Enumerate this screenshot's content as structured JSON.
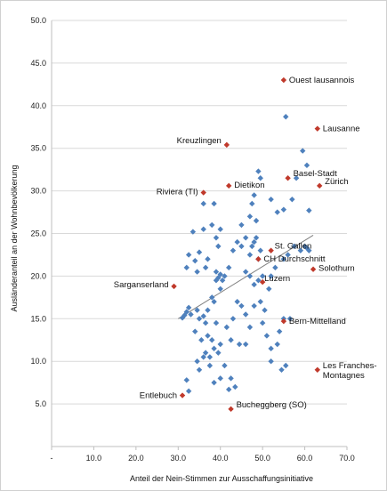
{
  "chart_data": {
    "type": "scatter",
    "title": "",
    "xlabel": "Anteil der Nein-Stimmen zur Ausschaffungsinitiative",
    "ylabel": "Ausländeranteil an der Wohnbevölkerung",
    "xlim": [
      0,
      70
    ],
    "ylim": [
      0,
      50
    ],
    "x_ticks": [
      "-",
      "10.0",
      "20.0",
      "30.0",
      "40.0",
      "50.0",
      "60.0",
      "70.0"
    ],
    "y_ticks": [
      "5.0",
      "10.0",
      "15.0",
      "20.0",
      "25.0",
      "30.0",
      "35.0",
      "40.0",
      "45.0",
      "50.0"
    ],
    "grid": "horizontal",
    "legend": "none",
    "colors": {
      "marker": "#4f81bd",
      "highlight": "#c0392b",
      "trendline": "#7f7f7f"
    },
    "trendline": {
      "x": [
        30.0,
        62.0
      ],
      "y": [
        15.0,
        24.8
      ]
    },
    "series": [
      {
        "points": [
          [
            31.0,
            15.1
          ],
          [
            31.5,
            15.4
          ],
          [
            32.0,
            15.8
          ],
          [
            32.5,
            16.3
          ],
          [
            33.0,
            15.5
          ],
          [
            32.0,
            21.0
          ],
          [
            32.5,
            22.5
          ],
          [
            33.5,
            25.2
          ],
          [
            34.0,
            21.8
          ],
          [
            34.5,
            20.5
          ],
          [
            35.0,
            22.8
          ],
          [
            36.0,
            25.5
          ],
          [
            36.5,
            21.0
          ],
          [
            37.0,
            22.0
          ],
          [
            36.0,
            28.5
          ],
          [
            38.5,
            28.5
          ],
          [
            38.0,
            26.0
          ],
          [
            39.0,
            24.5
          ],
          [
            39.5,
            23.5
          ],
          [
            40.0,
            25.5
          ],
          [
            38.0,
            17.5
          ],
          [
            38.5,
            17.0
          ],
          [
            39.0,
            19.5
          ],
          [
            39.0,
            20.5
          ],
          [
            39.5,
            19.8
          ],
          [
            40.0,
            20.2
          ],
          [
            40.5,
            19.5
          ],
          [
            40.0,
            18.5
          ],
          [
            41.0,
            20.0
          ],
          [
            42.0,
            21.0
          ],
          [
            34.5,
            16.0
          ],
          [
            35.0,
            15.0
          ],
          [
            36.0,
            15.3
          ],
          [
            37.0,
            16.0
          ],
          [
            36.5,
            14.5
          ],
          [
            37.0,
            13.0
          ],
          [
            38.0,
            12.5
          ],
          [
            38.5,
            11.5
          ],
          [
            39.5,
            11.0
          ],
          [
            40.0,
            12.0
          ],
          [
            34.0,
            13.5
          ],
          [
            35.5,
            12.5
          ],
          [
            36.5,
            11.0
          ],
          [
            37.5,
            10.5
          ],
          [
            36.0,
            10.5
          ],
          [
            34.5,
            10.0
          ],
          [
            35.0,
            9.0
          ],
          [
            37.5,
            9.5
          ],
          [
            38.5,
            7.5
          ],
          [
            40.0,
            8.0
          ],
          [
            41.0,
            9.5
          ],
          [
            42.5,
            8.0
          ],
          [
            43.5,
            7.0
          ],
          [
            42.0,
            6.7
          ],
          [
            32.0,
            7.8
          ],
          [
            32.5,
            6.5
          ],
          [
            39.0,
            14.5
          ],
          [
            41.5,
            14.0
          ],
          [
            43.0,
            15.0
          ],
          [
            44.0,
            17.0
          ],
          [
            45.0,
            16.5
          ],
          [
            46.0,
            15.5
          ],
          [
            42.5,
            12.5
          ],
          [
            44.5,
            12.0
          ],
          [
            46.0,
            12.0
          ],
          [
            47.0,
            14.0
          ],
          [
            48.0,
            16.5
          ],
          [
            43.0,
            23.0
          ],
          [
            44.0,
            24.0
          ],
          [
            45.0,
            23.5
          ],
          [
            46.0,
            24.5
          ],
          [
            47.0,
            22.5
          ],
          [
            47.5,
            23.5
          ],
          [
            48.5,
            24.5
          ],
          [
            49.0,
            22.0
          ],
          [
            45.0,
            26.0
          ],
          [
            47.0,
            27.0
          ],
          [
            48.5,
            26.5
          ],
          [
            48.0,
            24.0
          ],
          [
            49.5,
            23.0
          ],
          [
            46.0,
            20.5
          ],
          [
            47.0,
            20.0
          ],
          [
            48.0,
            19.0
          ],
          [
            49.0,
            19.5
          ],
          [
            50.0,
            20.0
          ],
          [
            49.5,
            17.0
          ],
          [
            50.5,
            16.0
          ],
          [
            51.5,
            18.5
          ],
          [
            52.0,
            20.0
          ],
          [
            53.0,
            21.0
          ],
          [
            50.0,
            14.5
          ],
          [
            51.0,
            13.0
          ],
          [
            52.0,
            11.5
          ],
          [
            53.5,
            12.0
          ],
          [
            54.0,
            13.5
          ],
          [
            55.0,
            15.0
          ],
          [
            56.5,
            15.0
          ],
          [
            54.5,
            9.0
          ],
          [
            55.5,
            9.5
          ],
          [
            52.0,
            10.0
          ],
          [
            55.0,
            22.0
          ],
          [
            56.0,
            22.5
          ],
          [
            57.5,
            23.5
          ],
          [
            59.0,
            23.0
          ],
          [
            60.0,
            23.5
          ],
          [
            60.5,
            23.3
          ],
          [
            61.0,
            23.0
          ],
          [
            57.0,
            29.0
          ],
          [
            58.0,
            31.5
          ],
          [
            59.5,
            34.7
          ],
          [
            60.5,
            33.0
          ],
          [
            61.0,
            27.7
          ],
          [
            55.0,
            27.8
          ],
          [
            53.5,
            27.5
          ],
          [
            52.0,
            29.0
          ],
          [
            55.5,
            38.7
          ],
          [
            49.0,
            32.3
          ],
          [
            49.5,
            31.5
          ],
          [
            48.0,
            29.5
          ],
          [
            47.5,
            28.5
          ]
        ]
      }
    ],
    "highlighted": [
      {
        "label": "Ouest lausannois",
        "x": 55.0,
        "y": 43.0
      },
      {
        "label": "Lausanne",
        "x": 63.0,
        "y": 37.3
      },
      {
        "label": "Kreuzlingen",
        "x": 41.5,
        "y": 35.4
      },
      {
        "label": "Basel-Stadt",
        "x": 56.0,
        "y": 31.5
      },
      {
        "label": "Zürich",
        "x": 63.5,
        "y": 30.6
      },
      {
        "label": "Dietikon",
        "x": 42.0,
        "y": 30.6
      },
      {
        "label": "Riviera (TI)",
        "x": 36.0,
        "y": 29.8
      },
      {
        "label": "St. Gallen",
        "x": 52.0,
        "y": 23.0
      },
      {
        "label": "CH Durchschnitt",
        "x": 49.0,
        "y": 22.0
      },
      {
        "label": "Solothurn",
        "x": 62.0,
        "y": 20.8
      },
      {
        "label": "Sarganserland",
        "x": 29.0,
        "y": 18.8
      },
      {
        "label": "Luzern",
        "x": 50.0,
        "y": 19.3
      },
      {
        "label": "Bern-Mittelland",
        "x": 55.0,
        "y": 14.7
      },
      {
        "label": "Les Franches-Montagnes",
        "x": 63.0,
        "y": 9.0
      },
      {
        "label": "Entlebuch",
        "x": 31.0,
        "y": 6.0
      },
      {
        "label": "Bucheggberg (SO)",
        "x": 42.5,
        "y": 4.4
      }
    ]
  }
}
